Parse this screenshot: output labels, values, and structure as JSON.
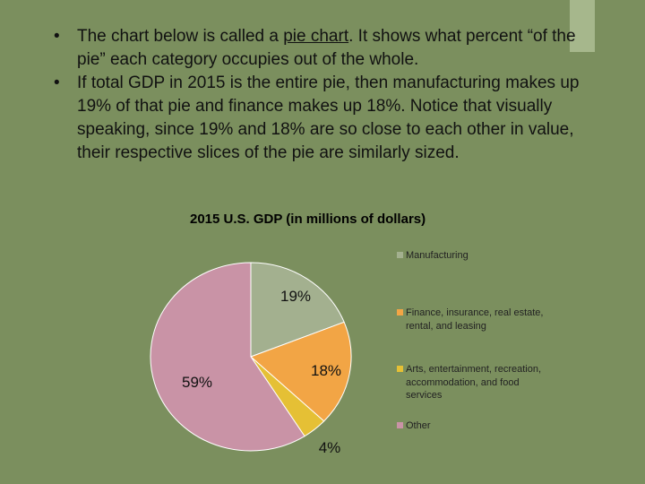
{
  "bullets": {
    "b1_pre": "The chart below is called a ",
    "b1_link": "pie chart",
    "b1_post": ".  It shows what percent “of the pie” each category occupies out of the whole.",
    "b2": "If total GDP in 2015 is the entire pie, then manufacturing makes up 19% of that pie and finance makes up 18%. Notice that visually speaking, since 19% and 18% are so close to each other in value, their respective slices of the pie are similarly sized."
  },
  "chart_data": {
    "type": "pie",
    "title": "2015 U.S. GDP (in millions of dollars)",
    "slices": [
      {
        "label": "Manufacturing",
        "value": 19,
        "display": "19%",
        "color": "#a3b08f"
      },
      {
        "label": "Finance, insurance, real estate, rental, and leasing",
        "value": 18,
        "display": "18%",
        "color": "#f2a545"
      },
      {
        "label": "Arts, entertainment, recreation, accommodation, and food services",
        "value": 4,
        "display": "4%",
        "color": "#e5c035"
      },
      {
        "label": "Other",
        "value": 59,
        "display": "59%",
        "color": "#c993a6"
      }
    ],
    "legend_position": "right"
  }
}
